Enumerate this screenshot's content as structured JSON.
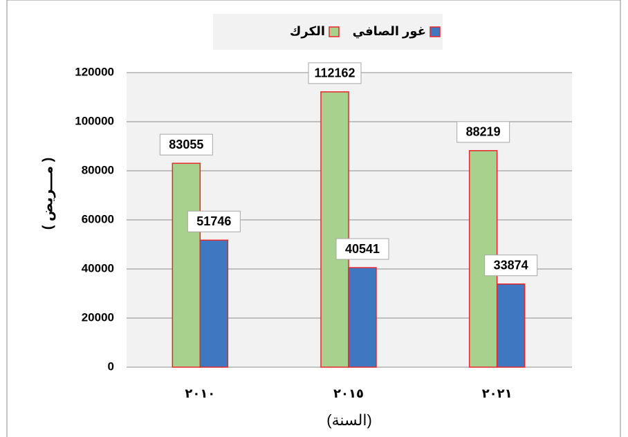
{
  "chart_data": {
    "type": "bar",
    "categories": [
      "٢٠١٠",
      "٢٠١٥",
      "٢٠٢١"
    ],
    "series": [
      {
        "name": "الكرك",
        "color": "#a9d18e",
        "values": [
          83055,
          112162,
          88219
        ]
      },
      {
        "name": "غور الصافي",
        "color": "#3f78c0",
        "values": [
          51746,
          40541,
          33874
        ]
      }
    ],
    "edgecolor": "#e8262a",
    "ylim": [
      0,
      120000
    ],
    "yticks": [
      0,
      20000,
      40000,
      60000,
      80000,
      100000,
      120000
    ],
    "x_label": "(السنة)",
    "y_label": "( مـــريض )",
    "grid": true,
    "legend": "top"
  }
}
